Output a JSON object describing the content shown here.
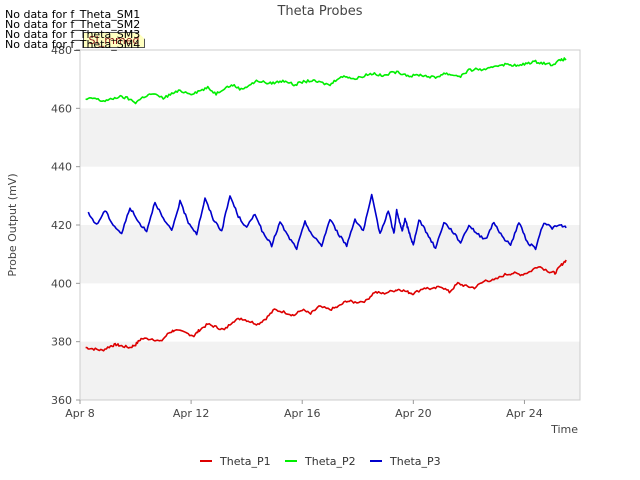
{
  "chart_data": {
    "type": "line",
    "title": "Theta Probes",
    "xlabel": "Time",
    "ylabel": "Probe Output (mV)",
    "xlim": [
      0,
      18
    ],
    "ylim": [
      360,
      480
    ],
    "x_ticks": [
      {
        "v": 0,
        "label": "Apr 8"
      },
      {
        "v": 4,
        "label": "Apr 12"
      },
      {
        "v": 8,
        "label": "Apr 16"
      },
      {
        "v": 12,
        "label": "Apr 20"
      },
      {
        "v": 16,
        "label": "Apr 24"
      }
    ],
    "y_ticks": [
      360,
      380,
      400,
      420,
      440,
      460,
      480
    ],
    "series": [
      {
        "name": "Theta_P1",
        "color": "#dd0000",
        "x": [
          0.2,
          0.5,
          0.8,
          1.1,
          1.3,
          1.5,
          1.8,
          2.0,
          2.2,
          2.6,
          2.9,
          3.2,
          3.4,
          3.8,
          4.1,
          4.3,
          4.6,
          4.9,
          5.2,
          5.5,
          5.8,
          6.1,
          6.4,
          6.7,
          7.0,
          7.4,
          7.7,
          8.0,
          8.3,
          8.6,
          9.0,
          9.3,
          9.6,
          9.9,
          10.3,
          10.6,
          10.9,
          11.3,
          11.5,
          11.8,
          12.0,
          12.4,
          12.7,
          13.0,
          13.3,
          13.6,
          13.9,
          14.2,
          14.6,
          14.9,
          15.3,
          15.6,
          15.9,
          16.2,
          16.5,
          16.9,
          17.1,
          17.3,
          17.5
        ],
        "values": [
          378,
          377.5,
          377,
          378.5,
          379,
          378.5,
          378,
          379,
          381,
          381,
          380,
          383,
          384,
          383,
          382,
          384,
          386,
          385,
          384,
          387,
          388,
          387,
          386,
          388,
          391,
          390,
          389,
          391,
          389.5,
          392,
          391,
          392,
          394,
          393.5,
          394,
          397,
          396.5,
          397.5,
          398,
          397,
          396.5,
          398.5,
          398,
          399,
          397,
          400,
          399,
          398.5,
          401,
          401,
          403,
          403.5,
          403,
          404,
          406,
          404,
          403.5,
          406,
          408
        ]
      },
      {
        "name": "Theta_P2",
        "color": "#00ee00",
        "x": [
          0.2,
          0.5,
          0.8,
          1.1,
          1.4,
          1.7,
          2.0,
          2.3,
          2.6,
          3.0,
          3.3,
          3.6,
          4.0,
          4.3,
          4.6,
          4.9,
          5.2,
          5.5,
          5.8,
          6.1,
          6.4,
          6.8,
          7.1,
          7.4,
          7.7,
          8.0,
          8.3,
          8.6,
          9.0,
          9.3,
          9.6,
          9.9,
          10.3,
          10.6,
          10.9,
          11.3,
          11.6,
          11.9,
          12.2,
          12.5,
          12.8,
          13.1,
          13.4,
          13.7,
          14.0,
          14.3,
          14.6,
          14.9,
          15.2,
          15.5,
          15.8,
          16.1,
          16.4,
          16.7,
          17.0,
          17.3,
          17.5
        ],
        "values": [
          463,
          463.5,
          462.5,
          463,
          464,
          463.5,
          462,
          464,
          465,
          463.5,
          465,
          466,
          465,
          466,
          467,
          465,
          467,
          468,
          466.5,
          468,
          469.5,
          468.5,
          469,
          469.5,
          468,
          469,
          469.5,
          469,
          468,
          470.5,
          471,
          470,
          471.5,
          472,
          471,
          472.5,
          472,
          471,
          471.5,
          471,
          470.5,
          472,
          471.5,
          471,
          473,
          473.5,
          473,
          474.5,
          475,
          475,
          474.5,
          475.5,
          476,
          475.5,
          475,
          476.5,
          477
        ]
      },
      {
        "name": "Theta_P3",
        "color": "#0000cc",
        "x": [
          0.3,
          0.6,
          0.9,
          1.2,
          1.5,
          1.8,
          2.1,
          2.4,
          2.7,
          3.0,
          3.3,
          3.6,
          3.9,
          4.2,
          4.5,
          4.8,
          5.1,
          5.4,
          5.7,
          6.0,
          6.3,
          6.6,
          6.9,
          7.2,
          7.5,
          7.8,
          8.1,
          8.4,
          8.7,
          9.0,
          9.3,
          9.6,
          9.9,
          10.2,
          10.5,
          10.8,
          11.1,
          11.3,
          11.4,
          11.5,
          11.6,
          11.7,
          11.8,
          11.9,
          12.0,
          12.2,
          12.5,
          12.8,
          13.1,
          13.4,
          13.7,
          14.0,
          14.3,
          14.6,
          14.9,
          15.2,
          15.5,
          15.8,
          16.1,
          16.4,
          16.7,
          17.0,
          17.3,
          17.5
        ],
        "values": [
          424,
          420,
          425,
          420,
          417,
          426,
          421,
          418,
          428,
          422,
          418,
          428,
          421,
          417,
          429,
          422,
          418,
          430,
          423,
          419,
          424,
          417,
          413,
          421,
          416,
          412,
          421,
          416,
          413,
          422,
          417,
          413,
          422,
          418,
          430,
          417,
          425,
          417,
          425,
          421,
          418,
          422,
          419,
          416,
          413,
          422,
          417,
          412,
          421,
          418,
          414,
          420,
          417,
          415,
          421,
          416,
          413,
          421,
          414,
          412,
          421,
          419,
          420,
          419
        ]
      }
    ]
  },
  "no_data_notes": [
    "No data for f_Theta_SM1",
    "No data for f_Theta_SM2",
    "No data for f_Theta_SM3",
    "No data for f_Theta_SM4"
  ],
  "badge_label": "SI_mmed"
}
